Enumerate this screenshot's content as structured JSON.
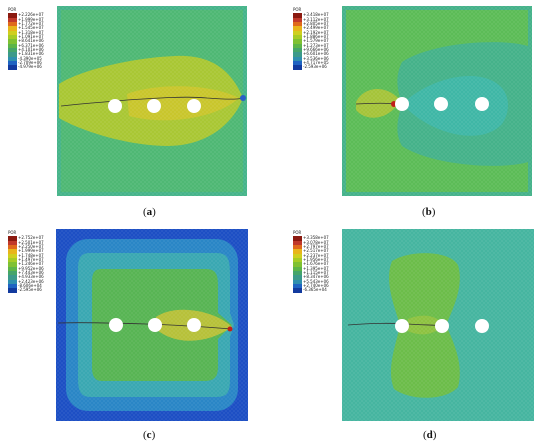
{
  "panels": [
    {
      "id": "a",
      "caption_open": "(",
      "caption_letter": "a",
      "caption_close": ")",
      "legend_title": "POR",
      "legend_values": [
        "+2.226e+07",
        "+1.999e+07",
        "+1.772e+07",
        "+1.545e+07",
        "+1.318e+07",
        "+1.091e+07",
        "+8.641e+06",
        "+6.371e+06",
        "+4.101e+06",
        "+1.831e+06",
        "-4.390e+05",
        "-2.709e+06",
        "-4.979e+06"
      ],
      "legend_colors": [
        "#8b1a10",
        "#c0392b",
        "#e06a1c",
        "#e8b51b",
        "#cfcf1f",
        "#a6cc25",
        "#7fc132",
        "#5cb548",
        "#45a56a",
        "#3c9a8a",
        "#2f8fae",
        "#1f63c2",
        "#123a9e"
      ],
      "field": {
        "background": "#46b48a",
        "edge": "#3fae98",
        "zone": "#a8c638",
        "core": "#c7c52d",
        "hotspot": "#c23a1d"
      }
    },
    {
      "id": "b",
      "caption_open": "(",
      "caption_letter": "b",
      "caption_close": ")",
      "legend_title": "POR",
      "legend_values": [
        "+3.418e+07",
        "+3.112e+07",
        "+2.805e+07",
        "+2.499e+07",
        "+2.192e+07",
        "+1.886e+07",
        "+1.579e+07",
        "+1.273e+07",
        "+9.666e+06",
        "+6.601e+06",
        "+3.536e+06",
        "+4.717e+05",
        "-2.593e+06"
      ],
      "legend_colors": [
        "#8b1a10",
        "#c0392b",
        "#e06a1c",
        "#e8b51b",
        "#cfcf1f",
        "#a6cc25",
        "#7fc132",
        "#5cb548",
        "#45a56a",
        "#3c9a8a",
        "#2f8fae",
        "#1f63c2",
        "#123a9e"
      ],
      "field": {
        "background": "#5cbc57",
        "edge": "#45b28a",
        "zone": "#3fb7a6",
        "core": "#a5c43a",
        "hotspot": "#c0201a"
      }
    },
    {
      "id": "c",
      "caption_open": "(",
      "caption_letter": "c",
      "caption_close": ")",
      "legend_title": "POR",
      "legend_values": [
        "+2.752e+07",
        "+2.501e+07",
        "+2.250e+07",
        "+1.999e+07",
        "+1.748e+07",
        "+1.497e+07",
        "+1.246e+07",
        "+9.952e+06",
        "+7.443e+06",
        "+4.933e+06",
        "+2.423e+06",
        "-8.606e+04",
        "-2.595e+06"
      ],
      "legend_colors": [
        "#8b1a10",
        "#c0392b",
        "#e06a1c",
        "#e8b51b",
        "#cfcf1f",
        "#a6cc25",
        "#7fc132",
        "#5cb548",
        "#45a56a",
        "#3c9a8a",
        "#2f8fae",
        "#1f63c2",
        "#123a9e"
      ],
      "field": {
        "background": "#1d4fc4",
        "ring1": "#2a86c6",
        "ring2": "#3aa8b2",
        "zone": "#58b554",
        "core": "#b7c13a",
        "hotspot": "#c0201a"
      }
    },
    {
      "id": "d",
      "caption_open": "(",
      "caption_letter": "d",
      "caption_close": ")",
      "legend_title": "POR",
      "legend_values": [
        "+3.358e+07",
        "+3.078e+07",
        "+2.797e+07",
        "+2.517e+07",
        "+2.237e+07",
        "+1.956e+07",
        "+1.676e+07",
        "+1.395e+07",
        "+1.115e+07",
        "+8.347e+06",
        "+5.543e+06",
        "+2.740e+06",
        "-6.365e+04"
      ],
      "legend_colors": [
        "#8b1a10",
        "#c0392b",
        "#e06a1c",
        "#e8b51b",
        "#cfcf1f",
        "#a6cc25",
        "#7fc132",
        "#5cb548",
        "#45a56a",
        "#3c9a8a",
        "#2f8fae",
        "#1f63c2",
        "#123a9e"
      ],
      "field": {
        "background": "#46b5a0",
        "edge": "#46b5a0",
        "zone": "#6cbd4a",
        "core": "#8ec241",
        "hotspot": "#c0201a"
      }
    }
  ]
}
